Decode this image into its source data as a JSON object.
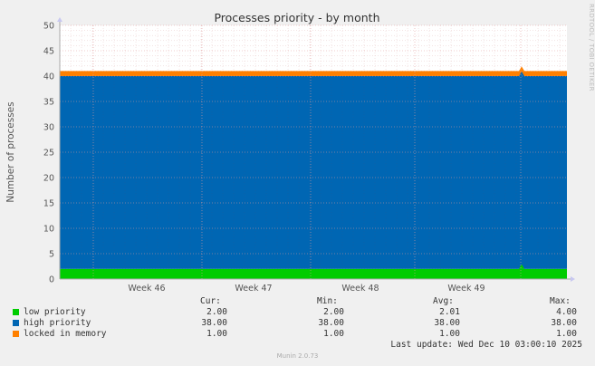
{
  "chart_data": {
    "type": "area",
    "title": "Processes priority - by month",
    "ylabel": "Number of processes",
    "ylim": [
      0,
      50
    ],
    "yticks": [
      0,
      5,
      10,
      15,
      20,
      25,
      30,
      35,
      40,
      45,
      50
    ],
    "xticks": [
      "Week 46",
      "Week 47",
      "Week 48",
      "Week 49"
    ],
    "stacked": true,
    "series": [
      {
        "name": "low priority",
        "color": "#00cc00",
        "value": 2.0,
        "spike": 2.9
      },
      {
        "name": "high priority",
        "color": "#0066b3",
        "value": 38.0,
        "spike": 38.0
      },
      {
        "name": "locked in memory",
        "color": "#ff8000",
        "value": 1.0,
        "spike": 1.0
      }
    ],
    "grid": true
  },
  "legend": {
    "headers": {
      "cur": "Cur:",
      "min": "Min:",
      "avg": "Avg:",
      "max": "Max:"
    },
    "rows": [
      {
        "name": "low priority",
        "color": "#00cc00",
        "cur": "2.00",
        "min": "2.00",
        "avg": "2.01",
        "max": "4.00"
      },
      {
        "name": "high priority",
        "color": "#0066b3",
        "cur": "38.00",
        "min": "38.00",
        "avg": "38.00",
        "max": "38.00"
      },
      {
        "name": "locked in memory",
        "color": "#ff8000",
        "cur": "1.00",
        "min": "1.00",
        "avg": "1.00",
        "max": "1.00"
      }
    ]
  },
  "last_update": "Last update: Wed Dec 10 03:00:10 2025",
  "footer": "Munin 2.0.73",
  "side_label": "RRDTOOL / TOBI OETIKER"
}
